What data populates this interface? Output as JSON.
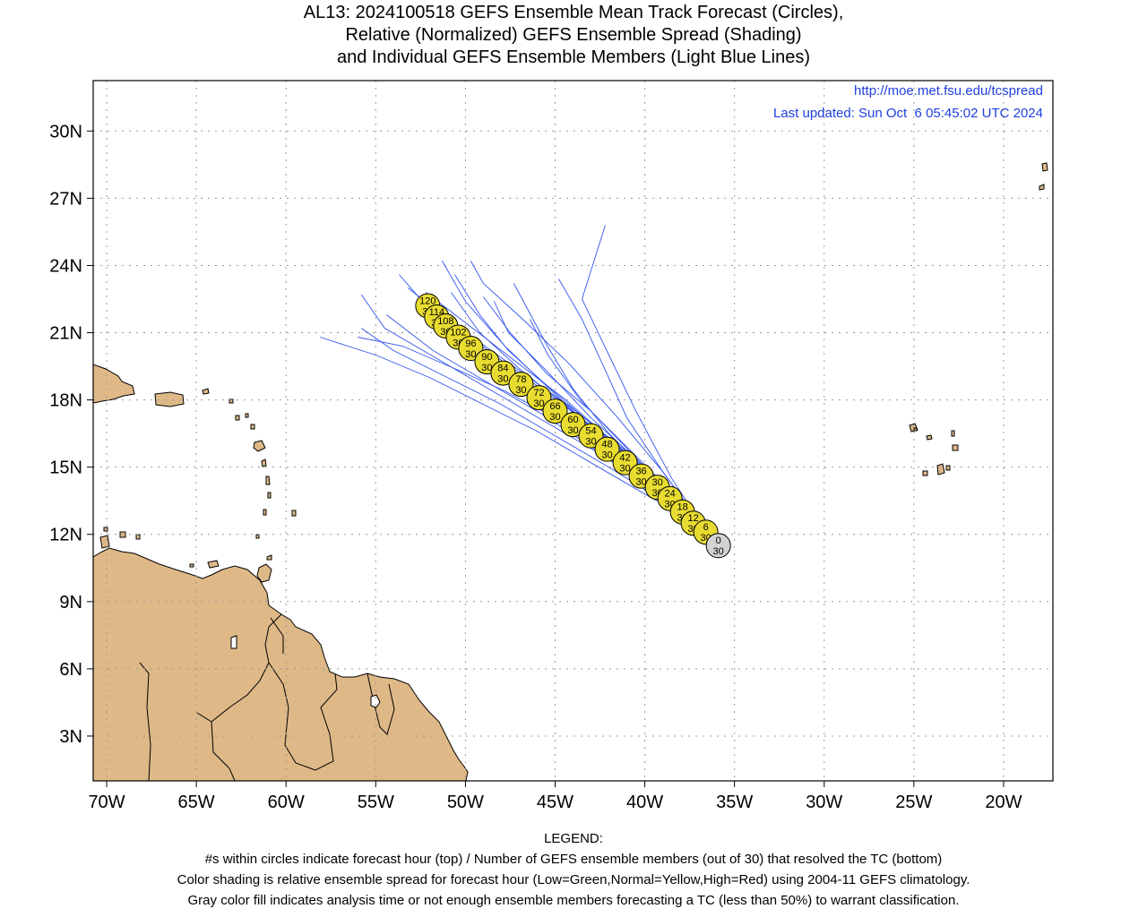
{
  "title": {
    "line1": "AL13: 2024100518 GEFS Ensemble Mean Track Forecast (Circles),",
    "line2": "Relative (Normalized) GEFS Ensemble Spread (Shading)",
    "line3": "and Individual GEFS Ensemble Members (Light Blue Lines)"
  },
  "header_links": {
    "url": "http://moe.met.fsu.edu/tcspread",
    "updated": "Last updated: Sun Oct  6 05:45:02 UTC 2024"
  },
  "axes": {
    "lon_range": [
      -70.75,
      -17.25
    ],
    "lat_range": [
      1.0,
      32.25
    ],
    "lon_ticks": [
      "70W",
      "65W",
      "60W",
      "55W",
      "50W",
      "45W",
      "40W",
      "35W",
      "30W",
      "25W",
      "20W"
    ],
    "lat_ticks": [
      "3N",
      "6N",
      "9N",
      "12N",
      "15N",
      "18N",
      "21N",
      "24N",
      "27N",
      "30N"
    ],
    "grid": true
  },
  "colors": {
    "land": "#deb887",
    "member_tracks": "#3355ee",
    "circle_yellow": "#e8dc30",
    "circle_gray": "#d3d3d3",
    "grid": "#999999"
  },
  "chart_data": {
    "type": "map",
    "mean_track": [
      {
        "hour": "0",
        "members": "30",
        "lon": -35.9,
        "lat": 11.5,
        "shade": "gray"
      },
      {
        "hour": "6",
        "members": "30",
        "lon": -36.6,
        "lat": 12.1,
        "shade": "yellow"
      },
      {
        "hour": "12",
        "members": "30",
        "lon": -37.3,
        "lat": 12.5,
        "shade": "yellow"
      },
      {
        "hour": "18",
        "members": "30",
        "lon": -37.9,
        "lat": 13.0,
        "shade": "yellow"
      },
      {
        "hour": "24",
        "members": "30",
        "lon": -38.6,
        "lat": 13.6,
        "shade": "yellow"
      },
      {
        "hour": "30",
        "members": "30",
        "lon": -39.3,
        "lat": 14.1,
        "shade": "yellow"
      },
      {
        "hour": "36",
        "members": "30",
        "lon": -40.2,
        "lat": 14.6,
        "shade": "yellow"
      },
      {
        "hour": "42",
        "members": "30",
        "lon": -41.1,
        "lat": 15.2,
        "shade": "yellow"
      },
      {
        "hour": "48",
        "members": "30",
        "lon": -42.1,
        "lat": 15.8,
        "shade": "yellow"
      },
      {
        "hour": "54",
        "members": "30",
        "lon": -43.0,
        "lat": 16.4,
        "shade": "yellow"
      },
      {
        "hour": "60",
        "members": "30",
        "lon": -44.0,
        "lat": 16.9,
        "shade": "yellow"
      },
      {
        "hour": "66",
        "members": "30",
        "lon": -45.0,
        "lat": 17.5,
        "shade": "yellow"
      },
      {
        "hour": "72",
        "members": "30",
        "lon": -45.9,
        "lat": 18.1,
        "shade": "yellow"
      },
      {
        "hour": "78",
        "members": "30",
        "lon": -46.9,
        "lat": 18.7,
        "shade": "yellow"
      },
      {
        "hour": "84",
        "members": "30",
        "lon": -47.9,
        "lat": 19.2,
        "shade": "yellow"
      },
      {
        "hour": "90",
        "members": "30",
        "lon": -48.8,
        "lat": 19.7,
        "shade": "yellow"
      },
      {
        "hour": "96",
        "members": "30",
        "lon": -49.7,
        "lat": 20.3,
        "shade": "yellow"
      },
      {
        "hour": "102",
        "members": "30",
        "lon": -50.4,
        "lat": 20.8,
        "shade": "yellow"
      },
      {
        "hour": "108",
        "members": "30",
        "lon": -51.1,
        "lat": 21.3,
        "shade": "yellow"
      },
      {
        "hour": "114",
        "members": "30",
        "lon": -51.6,
        "lat": 21.7,
        "shade": "yellow"
      },
      {
        "hour": "120",
        "members": "30",
        "lon": -52.1,
        "lat": 22.2,
        "shade": "yellow"
      }
    ],
    "member_tracks": [
      [
        [
          -36.8,
          12.4
        ],
        [
          -39.5,
          14.5
        ],
        [
          -42,
          16.5
        ],
        [
          -44,
          18.5
        ],
        [
          -45.5,
          20.5
        ],
        [
          -46.5,
          22
        ],
        [
          -47.3,
          23.2
        ]
      ],
      [
        [
          -36.8,
          12.4
        ],
        [
          -38.5,
          14.5
        ],
        [
          -40.5,
          17.5
        ],
        [
          -42,
          20
        ],
        [
          -43.5,
          22.5
        ],
        [
          -42.2,
          25.8
        ]
      ],
      [
        [
          -36.8,
          12.4
        ],
        [
          -39,
          14.8
        ],
        [
          -41,
          17.2
        ],
        [
          -42.3,
          19.5
        ],
        [
          -43.5,
          21.6
        ],
        [
          -44.8,
          23.4
        ]
      ],
      [
        [
          -36.8,
          12.4
        ],
        [
          -39.5,
          14.5
        ],
        [
          -42,
          16.2
        ],
        [
          -44.5,
          17.8
        ],
        [
          -47,
          19.4
        ],
        [
          -49.2,
          21
        ],
        [
          -50.8,
          22.8
        ]
      ],
      [
        [
          -36.8,
          12.4
        ],
        [
          -38,
          13.5
        ],
        [
          -40.5,
          15.5
        ],
        [
          -43,
          17.5
        ],
        [
          -45.5,
          19.2
        ],
        [
          -47.5,
          21
        ],
        [
          -49,
          22.6
        ]
      ],
      [
        [
          -36.8,
          12.4
        ],
        [
          -38.8,
          14
        ],
        [
          -41.2,
          16
        ],
        [
          -43.6,
          18
        ],
        [
          -45.4,
          20
        ],
        [
          -46.4,
          21.6
        ]
      ],
      [
        [
          -36.8,
          12.4
        ],
        [
          -39.5,
          14
        ],
        [
          -42.5,
          15.6
        ],
        [
          -45.5,
          17
        ],
        [
          -48.5,
          18.4
        ],
        [
          -51.5,
          19.8
        ],
        [
          -54.5,
          21.2
        ],
        [
          -55.8,
          22.7
        ]
      ],
      [
        [
          -36.8,
          12.4
        ],
        [
          -40,
          13.8
        ],
        [
          -43,
          15.2
        ],
        [
          -46,
          16.6
        ],
        [
          -49,
          17.8
        ],
        [
          -52,
          19
        ],
        [
          -55,
          20
        ],
        [
          -58.1,
          20.8
        ]
      ],
      [
        [
          -36.8,
          12.4
        ],
        [
          -39.8,
          14.2
        ],
        [
          -42.8,
          15.8
        ],
        [
          -45.8,
          17.4
        ],
        [
          -48.8,
          18.8
        ],
        [
          -51.8,
          20.2
        ],
        [
          -54.4,
          21.8
        ]
      ],
      [
        [
          -36.8,
          12.4
        ],
        [
          -39.5,
          14.4
        ],
        [
          -42.5,
          16.4
        ],
        [
          -45.2,
          18.4
        ],
        [
          -47.8,
          20.4
        ],
        [
          -50,
          22.4
        ],
        [
          -51.3,
          24.2
        ]
      ],
      [
        [
          -36.8,
          12.4
        ],
        [
          -39,
          14.8
        ],
        [
          -41.5,
          17.2
        ],
        [
          -44.2,
          19.6
        ],
        [
          -46.8,
          21.6
        ],
        [
          -49,
          23.2
        ],
        [
          -49.7,
          24.2
        ]
      ],
      [
        [
          -36.8,
          12.4
        ],
        [
          -39.6,
          14.6
        ],
        [
          -42.6,
          16.6
        ],
        [
          -45.6,
          18.4
        ],
        [
          -48.4,
          20
        ],
        [
          -51,
          21.6
        ],
        [
          -53.2,
          23
        ]
      ],
      [
        [
          -36.8,
          12.4
        ],
        [
          -38.5,
          13.8
        ],
        [
          -41.2,
          15.8
        ],
        [
          -44,
          17.6
        ],
        [
          -46.8,
          19.2
        ],
        [
          -49.6,
          20.8
        ],
        [
          -52.5,
          22.5
        ],
        [
          -53.7,
          23.6
        ]
      ],
      [
        [
          -36.8,
          12.4
        ],
        [
          -39.4,
          14.2
        ],
        [
          -42.2,
          15.8
        ],
        [
          -45,
          17.2
        ],
        [
          -47.8,
          18.4
        ],
        [
          -50.6,
          19.4
        ],
        [
          -53.5,
          20.4
        ],
        [
          -56,
          20.8
        ]
      ],
      [
        [
          -36.8,
          12.4
        ],
        [
          -39.2,
          13.6
        ],
        [
          -42,
          15
        ],
        [
          -45,
          16.4
        ],
        [
          -48,
          17.8
        ],
        [
          -51,
          19
        ],
        [
          -54,
          20.2
        ],
        [
          -55.8,
          21.2
        ]
      ],
      [
        [
          -36.8,
          12.4
        ],
        [
          -39.8,
          14.8
        ],
        [
          -42.8,
          16.8
        ],
        [
          -45.4,
          18.6
        ],
        [
          -47.6,
          20.2
        ],
        [
          -49.2,
          21.8
        ],
        [
          -50.6,
          23.6
        ]
      ],
      [
        [
          -36.8,
          12.4
        ],
        [
          -40,
          15
        ],
        [
          -43,
          17.2
        ],
        [
          -45.6,
          19.4
        ],
        [
          -47.6,
          21
        ],
        [
          -48.4,
          22.4
        ]
      ],
      [
        [
          -36.8,
          12.4
        ],
        [
          -39,
          14
        ],
        [
          -41.6,
          16
        ],
        [
          -44.4,
          18
        ],
        [
          -47,
          19.6
        ],
        [
          -49.6,
          21.2
        ],
        [
          -52.2,
          22.8
        ]
      ]
    ],
    "legend_title": "LEGEND:",
    "legend_lines": [
      "#s within circles indicate forecast hour (top) / Number of GEFS ensemble members (out of 30) that resolved the TC (bottom)",
      "Color shading is relative ensemble spread for forecast hour (Low=Green,Normal=Yellow,High=Red) using 2004-11 GEFS climatology.",
      "Gray color fill indicates analysis time or not enough ensemble members forecasting a TC (less than 50%) to warrant classification."
    ]
  }
}
